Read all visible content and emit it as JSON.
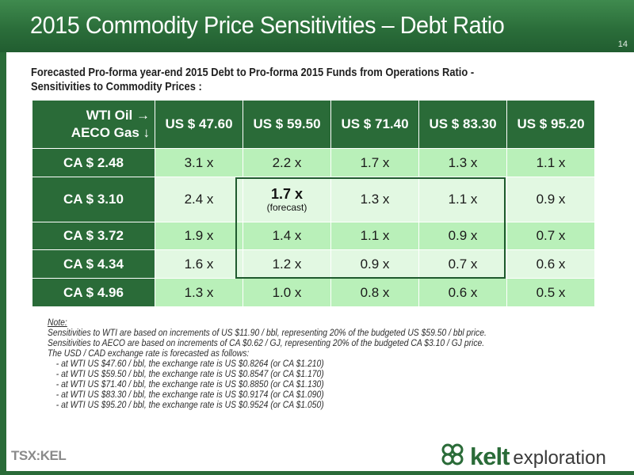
{
  "header": {
    "title": "2015 Commodity Price Sensitivities – Debt Ratio",
    "slide_number": "14"
  },
  "subtitle": {
    "line1": "Forecasted Pro-forma year-end 2015 Debt to Pro-forma 2015 Funds from Operations Ratio -",
    "line2": "Sensitivities to Commodity Prices :"
  },
  "table": {
    "corner_line1": "WTI Oil →",
    "corner_line2": "AECO Gas ↓",
    "columns": [
      "US $ 47.60",
      "US $ 59.50",
      "US $ 71.40",
      "US $ 83.30",
      "US $ 95.20"
    ],
    "rows": [
      {
        "label": "CA $ 2.48",
        "values": [
          "3.1 x",
          "2.2 x",
          "1.7 x",
          "1.3 x",
          "1.1 x"
        ]
      },
      {
        "label": "CA $ 3.10",
        "values": [
          "2.4 x",
          "1.7 x",
          "1.3 x",
          "1.1 x",
          "0.9 x"
        ]
      },
      {
        "label": "CA $ 3.72",
        "values": [
          "1.9 x",
          "1.4 x",
          "1.1 x",
          "0.9 x",
          "0.7 x"
        ]
      },
      {
        "label": "CA $ 4.34",
        "values": [
          "1.6 x",
          "1.2 x",
          "0.9 x",
          "0.7 x",
          "0.6 x"
        ]
      },
      {
        "label": "CA $ 4.96",
        "values": [
          "1.3 x",
          "1.0 x",
          "0.8 x",
          "0.6 x",
          "0.5 x"
        ]
      }
    ],
    "forecast_label": "(forecast)"
  },
  "notes": {
    "title": "Note:",
    "lines": [
      "Sensitivities to WTI are based on increments of US $11.90 / bbl, representing 20% of the budgeted US $59.50 / bbl price.",
      "Sensitivities to AECO are based on increments of CA $0.62 / GJ, representing 20% of the budgeted CA $3.10 / GJ price.",
      "The USD / CAD exchange rate is forecasted as follows:"
    ],
    "bullets": [
      "- at WTI US $47.60 / bbl, the exchange rate is US $0.8264 (or CA $1.210)",
      "- at WTI US $59.50 / bbl, the exchange rate is US $0.8547 (or CA $1.170)",
      "- at WTI US $71.40 / bbl, the exchange rate is US $0.8850 (or CA $1.130)",
      "- at WTI US $83.30 / bbl, the exchange rate is US $0.9174 (or CA $1.090)",
      "- at WTI US $95.20 / bbl, the exchange rate is US $0.9524 (or CA $1.050)"
    ]
  },
  "footer": {
    "ticker": "TSX:KEL",
    "brand_bold": "kelt",
    "brand_light": "exploration"
  },
  "colors": {
    "primary_green": "#2a6b38",
    "cell_green": "#b9f0b9",
    "cell_light": "#e2f8e2"
  },
  "icons": {
    "logo": "celtic-knot-icon"
  }
}
